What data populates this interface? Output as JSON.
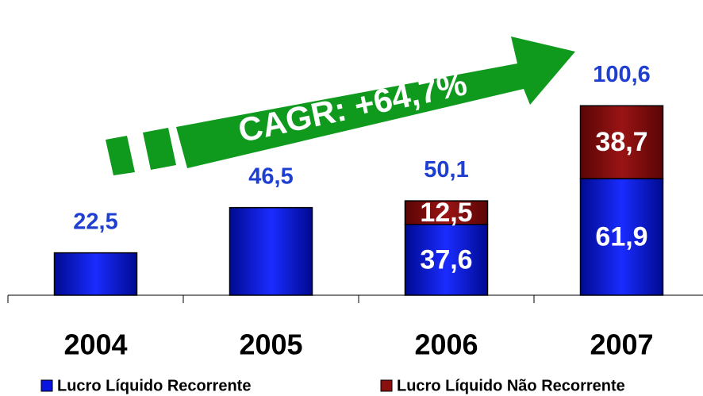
{
  "chart_data": {
    "type": "stacked_bar",
    "categories": [
      "2004",
      "2005",
      "2006",
      "2007"
    ],
    "series": [
      {
        "name": "Lucro Líquido Recorrente",
        "color": "#0a14e0",
        "values": [
          22.5,
          46.5,
          37.6,
          61.9
        ],
        "value_labels": [
          null,
          null,
          "37,6",
          "61,9"
        ]
      },
      {
        "name": "Lucro Líquido Não Recorrente",
        "color": "#8b0f0f",
        "values": [
          null,
          null,
          12.5,
          38.7
        ],
        "value_labels": [
          null,
          null,
          "12,5",
          "38,7"
        ]
      }
    ],
    "total_labels": [
      "22,5",
      "46,5",
      "50,1",
      "100,6"
    ],
    "annotation": "CAGR: +64,7%",
    "ylim": [
      0,
      150
    ],
    "legend": "bottom"
  }
}
